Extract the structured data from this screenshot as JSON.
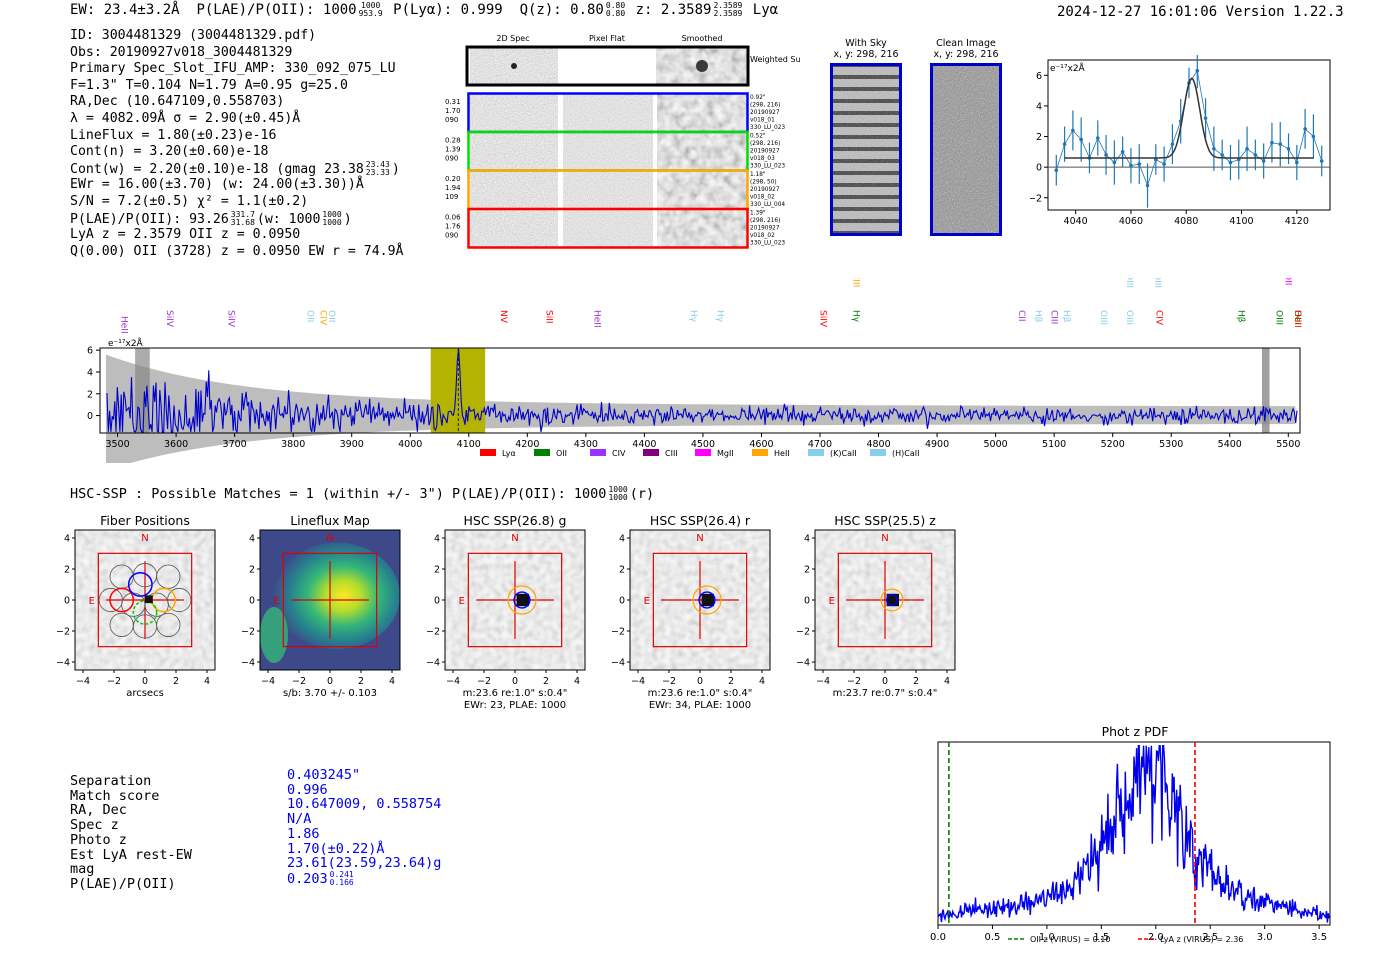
{
  "header": {
    "left": {
      "ew": "EW: 23.4±3.2Å",
      "plae_label": "P(LAE)/P(OII):",
      "plae_val": "1000",
      "plae_hi": "1000",
      "plae_lo": "953.9",
      "plya": "P(Lyα): 0.999",
      "qz_label": "Q(z): 0.80",
      "qz_hi": "0.80",
      "qz_lo": "0.80",
      "z_label": "z: 2.3589",
      "z_hi": "2.3589",
      "z_lo": "2.3589",
      "z_line": "Lyα"
    },
    "right": "2024-12-27 16:01:06  Version 1.22.3"
  },
  "info": {
    "id": "ID: 3004481329 (3004481329.pdf)",
    "obs": "Obs: 20190927v018_3004481329",
    "slot": "Primary Spec_Slot_IFU_AMP: 330_092_075_LU",
    "params": "F=1.3\"  T=0.104  N=1.79  A=0.95  g=25.0",
    "radec": "RA,Dec (10.647109,0.558703)",
    "lambda": "λ = 4082.09Å  σ = 2.90(±0.45)Å",
    "lineflux": "LineFlux = 1.80(±0.23)e-16",
    "contn": "Cont(n) = 3.20(±0.60)e-18",
    "contw_a": "Cont(w) = 2.20(±0.10)e-18 (gmag 23.38",
    "contw_hi": "23.43",
    "contw_lo": "23.33",
    "contw_b": ")",
    "ewr": "EWr = 16.00(±3.70) (w: 24.00(±3.30))Å",
    "sn": "S/N = 7.2(±0.5)  χ² = 1.1(±0.2)",
    "plae_a": "P(LAE)/P(OII): 93.26",
    "plae_hi": "331.7",
    "plae_lo": "31.68",
    "plae_b": "(w: 1000",
    "plae_w_hi": "1000",
    "plae_w_lo": "1000",
    "plae_c": ")",
    "lyaz": "LyA z = 2.3579  OII z = 0.0950",
    "q": "Q(0.00) OII (3728) z = 0.0950  EW r = 74.9Å"
  },
  "cutouts": {
    "col_labels": [
      "2D Spec",
      "Pixel Flat",
      "Smoothed"
    ],
    "weighted": "Weighted Sum",
    "fibers": [
      {
        "color": "#0000ff",
        "left": [
          "0.31",
          "1.70",
          "090"
        ],
        "right": [
          "0.92\"",
          "(298, 216)",
          "20190927",
          "v018_01",
          "330_LU_023"
        ]
      },
      {
        "color": "#00dd00",
        "left": [
          "0.28",
          "1.39",
          "090"
        ],
        "right": [
          "0.52\"",
          "(298, 216)",
          "20190927",
          "v018_03",
          "330_LU_023"
        ]
      },
      {
        "color": "#ffa500",
        "left": [
          "0.20",
          "1.94",
          "109"
        ],
        "right": [
          "1.18\"",
          "(298, 50)",
          "20190927",
          "v018_02",
          "330_LU_004"
        ]
      },
      {
        "color": "#ff0000",
        "left": [
          "0.06",
          "1.76",
          "090"
        ],
        "right": [
          "1.39\"",
          "(298, 216)",
          "20190927",
          "v018_02",
          "330_LU_023"
        ]
      }
    ],
    "with_sky": {
      "title": "With Sky",
      "coord": "x, y: 298, 216"
    },
    "clean": {
      "title": "Clean Image",
      "coord": "x, y: 298, 216"
    }
  },
  "zoom_spectrum": {
    "ylabel": "e⁻¹⁷x2Å",
    "xticks": [
      "4040",
      "4060",
      "4080",
      "4100",
      "4120"
    ],
    "yticks": [
      "6",
      "4",
      "2",
      "0",
      "−2"
    ],
    "x": [
      4033,
      4036,
      4039,
      4042,
      4045,
      4048,
      4051,
      4054,
      4057,
      4060,
      4063,
      4066,
      4069,
      4072,
      4075,
      4078,
      4081,
      4084,
      4087,
      4090,
      4093,
      4096,
      4099,
      4102,
      4105,
      4108,
      4111,
      4114,
      4117,
      4120,
      4123,
      4126,
      4129
    ],
    "y": [
      -0.2,
      1.5,
      2.4,
      1.8,
      0.6,
      1.9,
      0.8,
      0.3,
      1.0,
      0.1,
      0.2,
      -1.2,
      0.5,
      0.2,
      1.5,
      3.0,
      5.5,
      6.3,
      3.2,
      1.2,
      0.8,
      0.3,
      0.5,
      1.2,
      0.8,
      0.4,
      1.6,
      1.5,
      1.2,
      0.3,
      2.5,
      2.0,
      0.4
    ],
    "fit_peak": 5.8,
    "fit_center": 4082,
    "fit_continuum": 0.6,
    "xlim": [
      4030,
      4132
    ],
    "ylim": [
      -2.8,
      7
    ]
  },
  "full_spectrum": {
    "ylabel": "e⁻¹⁷x2Å",
    "xticks": [
      "3500",
      "3600",
      "3700",
      "3800",
      "3900",
      "4000",
      "4100",
      "4200",
      "4300",
      "4400",
      "4500",
      "4600",
      "4700",
      "4800",
      "4900",
      "5000",
      "5100",
      "5200",
      "5300",
      "5400",
      "5500"
    ],
    "yticks": [
      "6",
      "4",
      "2",
      "0"
    ],
    "xlim": [
      3470,
      5520
    ],
    "ylim": [
      -1.6,
      6.2
    ],
    "line_labels": [
      {
        "name": "HeII",
        "w": 3512,
        "color": "#9933cc",
        "row": 0
      },
      {
        "name": "SiIV",
        "w": 3590,
        "color": "#9933cc",
        "row": 1
      },
      {
        "name": "SiIV",
        "w": 3695,
        "color": "#9933cc",
        "row": 1
      },
      {
        "name": "OII",
        "w": 3830,
        "color": "#87ceeb",
        "row": 1
      },
      {
        "name": "CIV",
        "w": 3852,
        "color": "#ffa500",
        "row": 1
      },
      {
        "name": "OII",
        "w": 3866,
        "color": "#87ceeb",
        "row": 1
      },
      {
        "name": "NV",
        "w": 4160,
        "color": "#ff0000",
        "row": 1
      },
      {
        "name": "SiII",
        "w": 4238,
        "color": "#ff0000",
        "row": 1
      },
      {
        "name": "HeII",
        "w": 4320,
        "color": "#9933cc",
        "row": 1
      },
      {
        "name": "Hγ",
        "w": 4485,
        "color": "#87ceeb",
        "row": 1
      },
      {
        "name": "Hγ",
        "w": 4530,
        "color": "#87ceeb",
        "row": 1
      },
      {
        "name": "SiIV",
        "w": 4706,
        "color": "#ff0000",
        "row": 1
      },
      {
        "name": "Hγ",
        "w": 4762,
        "color": "#008000",
        "row": 1
      },
      {
        "name": "CIII",
        "w": 4762,
        "color": "#ffa500",
        "row": 2
      },
      {
        "name": "CII",
        "w": 5045,
        "color": "#9933cc",
        "row": 1
      },
      {
        "name": "Hβ",
        "w": 5073,
        "color": "#87ceeb",
        "row": 1
      },
      {
        "name": "CIII",
        "w": 5101,
        "color": "#9933cc",
        "row": 1
      },
      {
        "name": "Hβ",
        "w": 5122,
        "color": "#87ceeb",
        "row": 1
      },
      {
        "name": "OIII",
        "w": 5185,
        "color": "#87ceeb",
        "row": 1
      },
      {
        "name": "OIII",
        "w": 5230,
        "color": "#87ceeb",
        "row": 1
      },
      {
        "name": "OIII",
        "w": 5230,
        "color": "#87ceeb",
        "row": 2
      },
      {
        "name": "OIII",
        "w": 5277,
        "color": "#87ceeb",
        "row": 2
      },
      {
        "name": "CIV",
        "w": 5280,
        "color": "#ff0000",
        "row": 1
      },
      {
        "name": "Hβ",
        "w": 5420,
        "color": "#008000",
        "row": 1
      },
      {
        "name": "OIII",
        "w": 5485,
        "color": "#008000",
        "row": 1
      },
      {
        "name": "OII",
        "w": 5500,
        "color": "#ff00ff",
        "row": 2
      },
      {
        "name": "OIII",
        "w": 5535,
        "color": "#008000",
        "row": 1
      },
      {
        "name": "HeII",
        "w": 5560,
        "color": "#ff0000",
        "row": 1
      }
    ],
    "legend": [
      {
        "name": "Lyα",
        "color": "#ff0000"
      },
      {
        "name": "OII",
        "color": "#008000"
      },
      {
        "name": "CIV",
        "color": "#9933ff"
      },
      {
        "name": "CIII",
        "color": "#800080"
      },
      {
        "name": "MgII",
        "color": "#ff00ff"
      },
      {
        "name": "HeII",
        "color": "#ffa500"
      },
      {
        "name": "(K)CaII",
        "color": "#87ceeb"
      },
      {
        "name": "(H)CaII",
        "color": "#87ceeb"
      }
    ]
  },
  "hsc_title": {
    "a": "HSC-SSP : Possible Matches = 1 (within +/- 3\")  P(LAE)/P(OII): 1000",
    "hi": "1000",
    "lo": "1000",
    "b": "(r)"
  },
  "stamps": [
    {
      "title": "Fiber Positions",
      "cap1": "arcsecs",
      "cap2": "",
      "cap3": ""
    },
    {
      "title": "Lineflux Map",
      "cap1": "s/b: 3.70 +/- 0.103",
      "cap2": "",
      "cap3": ""
    },
    {
      "title": "HSC SSP(26.8) g",
      "cap1": "m:23.6  re:1.0\"  s:0.4\"",
      "cap2": "EWr: 23, PLAE: 1000",
      "cap3": ""
    },
    {
      "title": "HSC SSP(26.4) r",
      "cap1": "m:23.6  re:1.0\"  s:0.4\"",
      "cap2": "EWr: 34, PLAE: 1000",
      "cap3": ""
    },
    {
      "title": "HSC SSP(25.5) z",
      "cap1": "m:23.7  re:0.7\"  s:0.4\"",
      "cap2": "",
      "cap3": ""
    }
  ],
  "stamp_ticks": [
    "4",
    "2",
    "0",
    "−2",
    "−4"
  ],
  "stamp_xticks": [
    "−4",
    "−2",
    "0",
    "2",
    "4"
  ],
  "match": {
    "labels": [
      "Separation",
      "Match score",
      "RA, Dec",
      "Spec z",
      "Photo z",
      "Est LyA rest-EW",
      "mag",
      "P(LAE)/P(OII)"
    ],
    "values": [
      "0.403245\"",
      "0.996",
      "10.647009, 0.558754",
      "N/A",
      "1.86",
      "1.70(±0.22)Å",
      "23.61(23.59,23.64)g",
      "0.203"
    ],
    "plae_hi": "0.241",
    "plae_lo": "0.166"
  },
  "photz": {
    "title": "Phot z PDF",
    "xticks": [
      "0.0",
      "0.5",
      "1.0",
      "1.5",
      "2.0",
      "2.5",
      "3.0",
      "3.5"
    ],
    "xlim": [
      0,
      3.6
    ],
    "oii_z": 0.1,
    "lya_z": 2.36,
    "legend_oii": "OII z (VIRUS) = 0.10",
    "legend_lya": "LyA z (VIRUS) = 2.36",
    "shape": [
      [
        0.0,
        0.05
      ],
      [
        0.3,
        0.08
      ],
      [
        0.6,
        0.09
      ],
      [
        0.9,
        0.12
      ],
      [
        1.1,
        0.18
      ],
      [
        1.3,
        0.25
      ],
      [
        1.5,
        0.42
      ],
      [
        1.65,
        0.58
      ],
      [
        1.8,
        0.75
      ],
      [
        1.9,
        0.92
      ],
      [
        2.05,
        0.85
      ],
      [
        2.15,
        0.7
      ],
      [
        2.25,
        0.55
      ],
      [
        2.4,
        0.35
      ],
      [
        2.6,
        0.22
      ],
      [
        2.8,
        0.15
      ],
      [
        3.0,
        0.12
      ],
      [
        3.2,
        0.1
      ],
      [
        3.4,
        0.07
      ],
      [
        3.6,
        0.05
      ]
    ]
  },
  "colors": {
    "spectrum": "#0000cc",
    "band": "#b3b300",
    "fit": "#333333",
    "points": "#1f77b4"
  }
}
